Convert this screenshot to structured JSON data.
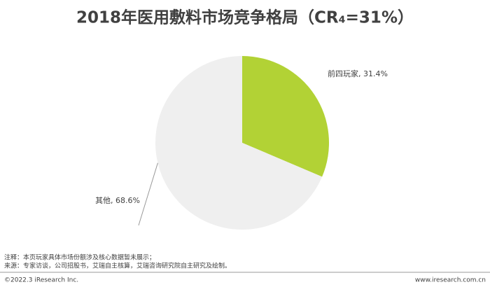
{
  "chart_data": {
    "type": "pie",
    "title": "2018年医用敷料市场竞争格局（CR₄=31%）",
    "categories": [
      "前四玩家",
      "其他"
    ],
    "values": [
      31.4,
      68.6
    ],
    "value_labels": [
      "前四玩家, 31.4%",
      "其他, 68.6%"
    ],
    "colors": [
      "#b2d235",
      "#efefef"
    ],
    "notes": [
      "注释：本页玩家具体市场份额涉及核心数据暂未展示；",
      "来源：专家访谈，公司招股书，艾瑞自主核算，艾瑞咨询研究院自主研究及绘制。"
    ],
    "footer_left": "©2022.3 iResearch Inc.",
    "footer_right": "www.iresearch.com.cn"
  }
}
